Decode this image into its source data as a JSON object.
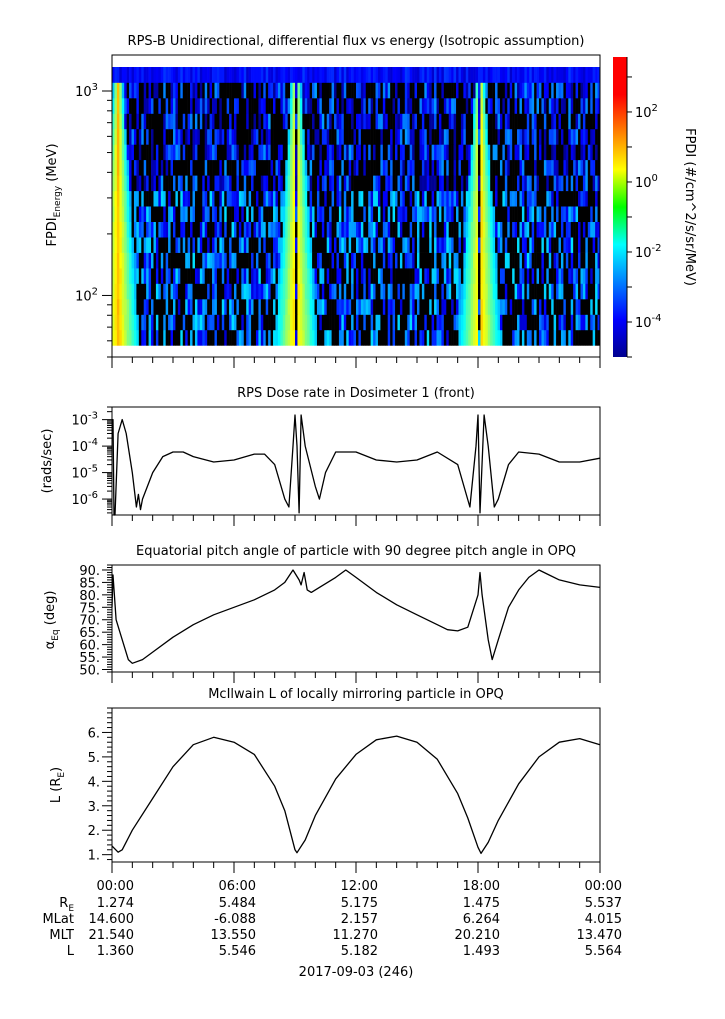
{
  "chart_data": [
    {
      "type": "heatmap",
      "title": "RPS-B  Unidirectional, differential flux vs energy (Isotropic assumption)",
      "ylabel": "FPDI",
      "ylabel_sub": "Energy",
      "ylabel_unit": " (MeV)",
      "yscale": "log",
      "ylim": [
        50,
        1500
      ],
      "data_energy_range": [
        57,
        1310
      ],
      "energy_bins": 18,
      "xlim": [
        0,
        24
      ],
      "yticks": [
        {
          "value": 1000,
          "base": "10",
          "exp": "3"
        },
        {
          "value": 100,
          "base": "10",
          "exp": "2"
        }
      ],
      "enhancement_center_hours": [
        0.3,
        9.05,
        18.1
      ],
      "enhancement_peak_log_flux": 0.9,
      "background_log_flux_range": [
        -4.3,
        -2.0
      ],
      "top_bin_log_flux": -3.9,
      "colormap": "jet",
      "colorbar": {
        "label": "FPDI (#/cm^2/s/sr/MeV)",
        "log_range": [
          -5,
          3.57
        ],
        "ticks": [
          {
            "value": 2,
            "base": "10",
            "exp": "2"
          },
          {
            "value": 0,
            "base": "10",
            "exp": "0"
          },
          {
            "value": -2,
            "base": "10",
            "exp": "-2"
          },
          {
            "value": -4,
            "base": "10",
            "exp": "-4"
          }
        ]
      }
    },
    {
      "type": "line",
      "title": "RPS  Dose rate in Dosimeter 1 (front)",
      "ylabel": "(rads/sec)",
      "yscale": "log",
      "ylim": [
        2.5e-07,
        0.003
      ],
      "yticks": [
        {
          "value": 0.001,
          "base": "10",
          "exp": "-3"
        },
        {
          "value": 0.0001,
          "base": "10",
          "exp": "-4"
        },
        {
          "value": 1e-05,
          "base": "10",
          "exp": "-5"
        },
        {
          "value": 1e-06,
          "base": "10",
          "exp": "-6"
        }
      ],
      "x": [
        0,
        0.05,
        0.1,
        0.15,
        0.3,
        0.5,
        0.7,
        1.0,
        1.2,
        1.3,
        1.4,
        1.5,
        2,
        2.5,
        3,
        3.5,
        4,
        5,
        6,
        7,
        7.5,
        8,
        8.5,
        8.7,
        8.9,
        9.0,
        9.1,
        9.2,
        9.3,
        9.5,
        10,
        10.2,
        10.5,
        11,
        12,
        13,
        14,
        15,
        16,
        17,
        17.6,
        17.9,
        18.0,
        18.1,
        18.3,
        18.5,
        18.8,
        19,
        19.5,
        20,
        21,
        22,
        23,
        24
      ],
      "y": [
        0.001,
        0.001,
        2.5e-07,
        2.5e-07,
        0.0003,
        0.001,
        0.0003,
        1e-05,
        5e-07,
        1.5e-06,
        4e-07,
        1e-06,
        1e-05,
        4e-05,
        6e-05,
        6e-05,
        4e-05,
        2.5e-05,
        3e-05,
        5e-05,
        5e-05,
        2e-05,
        1e-06,
        5e-07,
        0.0001,
        0.0015,
        0.0001,
        3e-07,
        0.0015,
        0.0001,
        3e-06,
        1e-06,
        1e-05,
        6e-05,
        6e-05,
        3e-05,
        2.5e-05,
        3e-05,
        6e-05,
        2e-05,
        5e-07,
        0.0001,
        0.0015,
        3e-07,
        0.0015,
        0.0001,
        5e-07,
        1e-06,
        2e-05,
        6e-05,
        5e-05,
        2.5e-05,
        2.5e-05,
        3.5e-05
      ]
    },
    {
      "type": "line",
      "title": "Equatorial pitch angle of particle with 90 degree pitch angle in OPQ",
      "ylabel": "α",
      "ylabel_sub": "Eq",
      "ylabel_unit": " (deg)",
      "ylim": [
        49,
        92
      ],
      "yticks": [
        {
          "value": 90,
          "label": "90."
        },
        {
          "value": 85,
          "label": "85."
        },
        {
          "value": 80,
          "label": "80."
        },
        {
          "value": 75,
          "label": "75."
        },
        {
          "value": 70,
          "label": "70."
        },
        {
          "value": 65,
          "label": "65."
        },
        {
          "value": 60,
          "label": "60."
        },
        {
          "value": 55,
          "label": "55."
        },
        {
          "value": 50,
          "label": "50."
        }
      ],
      "x": [
        0,
        0.05,
        0.2,
        0.5,
        0.8,
        1,
        1.5,
        2,
        3,
        4,
        5,
        6,
        7,
        8,
        8.5,
        8.9,
        9.2,
        9.3,
        9.45,
        9.6,
        9.8,
        10.2,
        11,
        11.5,
        12,
        13,
        14,
        15,
        16,
        16.5,
        17,
        17.5,
        18,
        18.1,
        18.2,
        18.5,
        18.7,
        19,
        19.5,
        20,
        20.5,
        21,
        21.5,
        22,
        23,
        24
      ],
      "y": [
        75,
        88,
        70,
        62,
        54,
        52.5,
        54,
        57,
        63,
        68,
        72,
        75,
        78,
        82,
        85,
        90,
        86,
        84,
        89,
        82,
        81,
        83,
        87,
        90,
        87,
        81,
        76,
        72,
        68,
        66,
        65.5,
        67,
        80,
        89,
        80,
        62,
        54,
        62,
        75,
        82,
        87,
        90,
        88,
        86,
        84,
        83
      ]
    },
    {
      "type": "line",
      "title": "McIlwain L of locally mirroring particle in OPQ",
      "ylabel": "L (R",
      "ylabel_sub": "E",
      "ylabel_unit": ")",
      "ylim": [
        0.7,
        7.0
      ],
      "yticks": [
        {
          "value": 6,
          "label": "6."
        },
        {
          "value": 5,
          "label": "5."
        },
        {
          "value": 4,
          "label": "4."
        },
        {
          "value": 3,
          "label": "3."
        },
        {
          "value": 2,
          "label": "2."
        },
        {
          "value": 1,
          "label": "1."
        }
      ],
      "x": [
        0,
        0.3,
        0.5,
        1,
        2,
        3,
        4,
        5,
        6,
        7,
        8,
        8.5,
        9,
        9.1,
        9.5,
        10,
        11,
        12,
        13,
        14,
        15,
        16,
        17,
        17.5,
        18,
        18.15,
        18.5,
        19,
        20,
        21,
        22,
        23,
        24
      ],
      "y": [
        1.36,
        1.1,
        1.2,
        2.0,
        3.3,
        4.6,
        5.5,
        5.8,
        5.6,
        5.1,
        3.8,
        2.8,
        1.2,
        1.08,
        1.6,
        2.6,
        4.1,
        5.1,
        5.7,
        5.85,
        5.6,
        4.9,
        3.5,
        2.5,
        1.3,
        1.05,
        1.5,
        2.4,
        3.9,
        5.0,
        5.6,
        5.75,
        5.5
      ]
    }
  ],
  "xaxis": {
    "range_hours": [
      0,
      24
    ],
    "tick_labels": [
      "00:00",
      "06:00",
      "12:00",
      "18:00",
      "00:00"
    ],
    "rows": [
      {
        "label": "R",
        "label_sub": "E",
        "values": [
          "1.274",
          "5.484",
          "5.175",
          "1.475",
          "5.537"
        ]
      },
      {
        "label": "MLat",
        "values": [
          "14.600",
          "-6.088",
          "2.157",
          "6.264",
          "4.015"
        ]
      },
      {
        "label": "MLT",
        "values": [
          "21.540",
          "13.550",
          "11.270",
          "20.210",
          "13.470"
        ]
      },
      {
        "label": "L",
        "values": [
          "1.360",
          "5.546",
          "5.182",
          "1.493",
          "5.564"
        ]
      }
    ],
    "date": "2017-09-03 (246)"
  }
}
